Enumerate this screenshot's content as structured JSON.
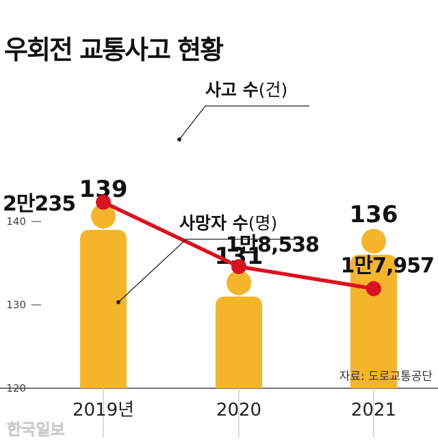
{
  "title": "우회전 교통사고 현황",
  "source": "자료: 도로교통공단",
  "watermark": "한국일보",
  "colors": {
    "accident_line": "#d9121f",
    "death_bar": "#f5b52a",
    "text": "#111111",
    "guide": "#cfcfcf"
  },
  "chart_data": {
    "type": "bar+line",
    "categories": [
      "2019년",
      "2020",
      "2021"
    ],
    "series": [
      {
        "name": "사고 수(건)",
        "type": "line",
        "values": [
          20235,
          18538,
          17957
        ],
        "labels": [
          "2만235",
          "1만8,538",
          "1만7,957"
        ]
      },
      {
        "name": "사망자 수(명)",
        "type": "bar",
        "values": [
          139,
          131,
          136
        ],
        "labels": [
          "139",
          "131",
          "136"
        ]
      }
    ],
    "left_axis": {
      "ticks": [
        140,
        130,
        120
      ],
      "ylim": [
        120,
        147
      ]
    },
    "line_axis": {
      "ylim": [
        15800,
        20700
      ]
    },
    "legend": {
      "line_label": "사고 수",
      "line_unit": "(건)",
      "bar_label": "사망자 수",
      "bar_unit": "(명)"
    }
  }
}
